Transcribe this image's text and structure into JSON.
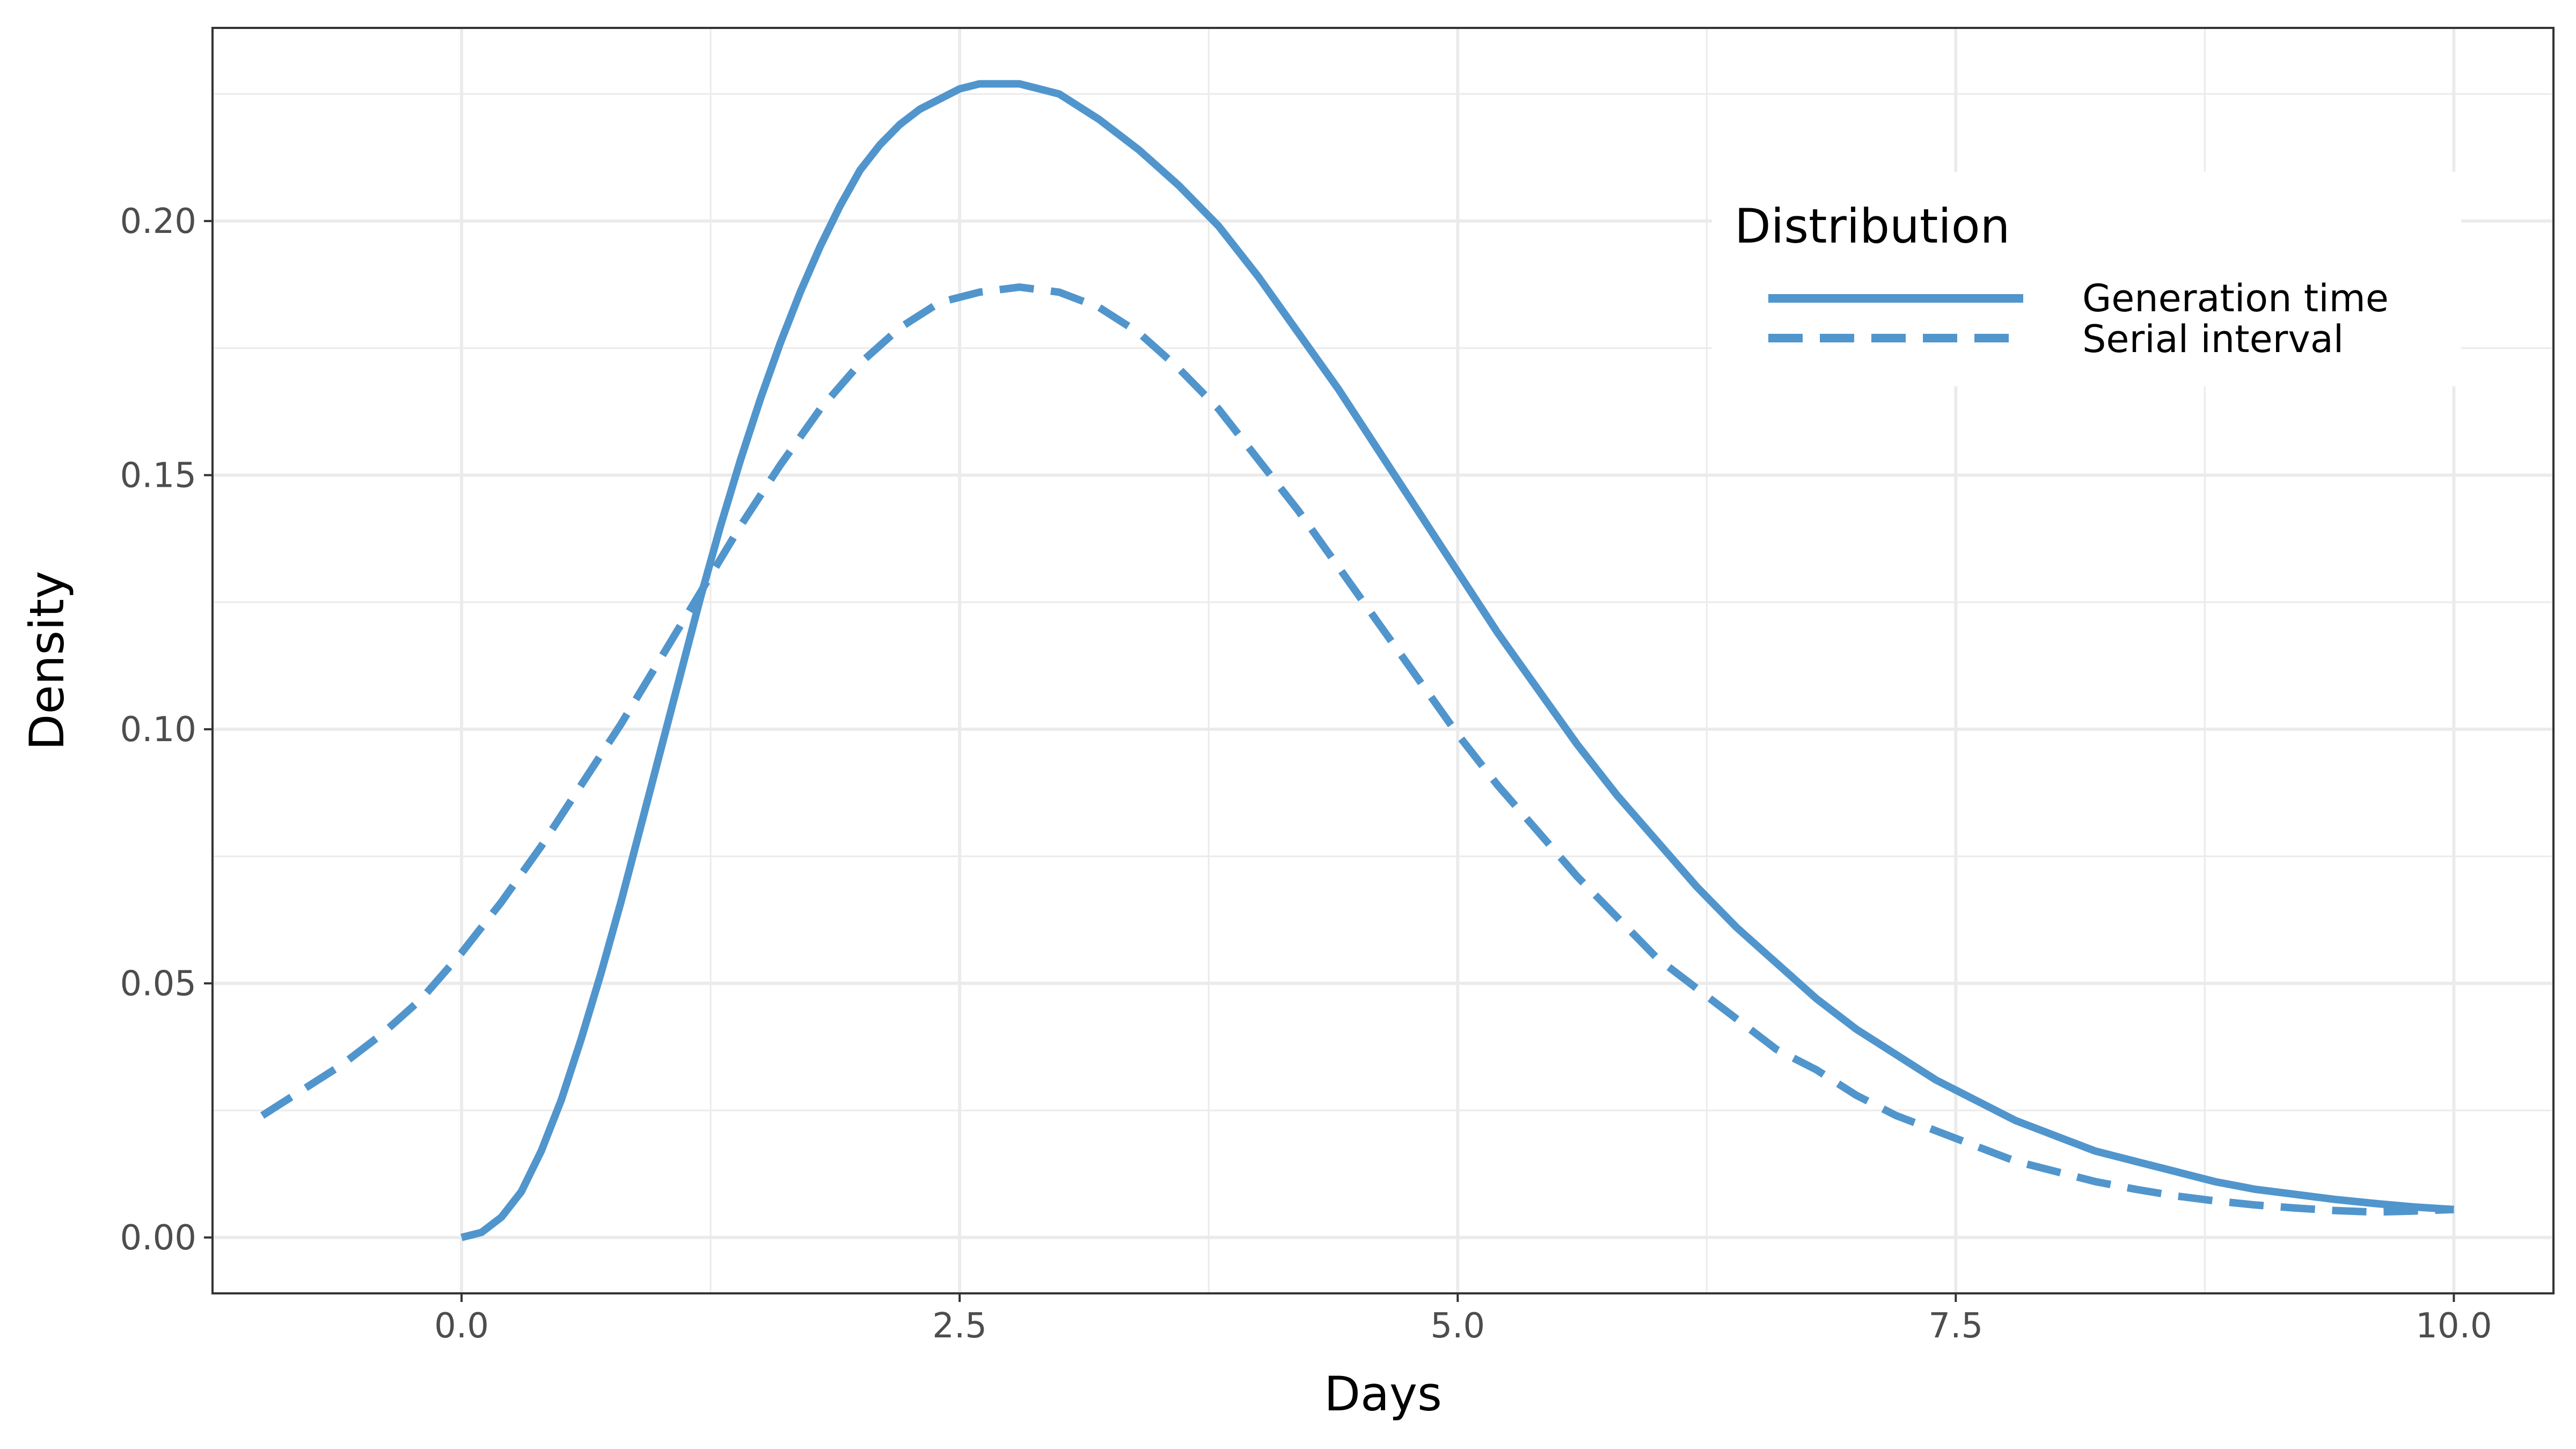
{
  "chart_data": {
    "type": "line",
    "xlabel": "Days",
    "ylabel": "Density",
    "xlim": [
      -1.25,
      10.5
    ],
    "ylim": [
      -0.011,
      0.238
    ],
    "x_ticks": [
      0.0,
      2.5,
      5.0,
      7.5,
      10.0
    ],
    "x_tick_labels": [
      "0.0",
      "2.5",
      "5.0",
      "7.5",
      "10.0"
    ],
    "y_ticks": [
      0.0,
      0.05,
      0.1,
      0.15,
      0.2
    ],
    "y_tick_labels": [
      "0.00",
      "0.05",
      "0.10",
      "0.15",
      "0.20"
    ],
    "grid": true,
    "legend": {
      "title": "Distribution",
      "placement": "top-right",
      "entries": [
        "Generation time",
        "Serial interval"
      ]
    },
    "line_color": "#5195CD",
    "series": [
      {
        "name": "Generation time",
        "style": "solid",
        "x": [
          0,
          0.1,
          0.2,
          0.3,
          0.4,
          0.5,
          0.6,
          0.7,
          0.8,
          0.9,
          1.0,
          1.1,
          1.2,
          1.3,
          1.4,
          1.5,
          1.6,
          1.7,
          1.8,
          1.9,
          2.0,
          2.1,
          2.2,
          2.3,
          2.4,
          2.5,
          2.6,
          2.7,
          2.8,
          2.9,
          3.0,
          3.2,
          3.4,
          3.6,
          3.8,
          4.0,
          4.2,
          4.4,
          4.6,
          4.8,
          5.0,
          5.2,
          5.4,
          5.6,
          5.8,
          6.0,
          6.2,
          6.4,
          6.6,
          6.8,
          7.0,
          7.2,
          7.4,
          7.6,
          7.8,
          8.0,
          8.2,
          8.4,
          8.6,
          8.8,
          9.0,
          9.2,
          9.4,
          9.6,
          9.8,
          10.0
        ],
        "values": [
          0.0,
          0.001,
          0.004,
          0.009,
          0.017,
          0.027,
          0.039,
          0.052,
          0.066,
          0.081,
          0.096,
          0.111,
          0.126,
          0.14,
          0.153,
          0.165,
          0.176,
          0.186,
          0.195,
          0.203,
          0.21,
          0.215,
          0.219,
          0.222,
          0.224,
          0.226,
          0.227,
          0.227,
          0.227,
          0.226,
          0.225,
          0.22,
          0.214,
          0.207,
          0.199,
          0.189,
          0.178,
          0.167,
          0.155,
          0.143,
          0.131,
          0.119,
          0.108,
          0.097,
          0.087,
          0.078,
          0.069,
          0.061,
          0.054,
          0.047,
          0.041,
          0.036,
          0.031,
          0.027,
          0.023,
          0.02,
          0.017,
          0.015,
          0.013,
          0.011,
          0.0095,
          0.0085,
          0.0075,
          0.0067,
          0.006,
          0.0055
        ]
      },
      {
        "name": "Serial interval",
        "style": "dashed",
        "x": [
          -1.0,
          -0.8,
          -0.6,
          -0.4,
          -0.2,
          0.0,
          0.2,
          0.4,
          0.6,
          0.8,
          1.0,
          1.2,
          1.4,
          1.6,
          1.8,
          2.0,
          2.2,
          2.4,
          2.6,
          2.8,
          3.0,
          3.2,
          3.4,
          3.6,
          3.8,
          4.0,
          4.2,
          4.4,
          4.6,
          4.8,
          5.0,
          5.2,
          5.4,
          5.6,
          5.8,
          6.0,
          6.2,
          6.4,
          6.6,
          6.8,
          7.0,
          7.2,
          7.4,
          7.6,
          7.8,
          8.0,
          8.2,
          8.4,
          8.6,
          8.8,
          9.0,
          9.2,
          9.4,
          9.6,
          9.8,
          10.0
        ],
        "values": [
          0.024,
          0.029,
          0.034,
          0.04,
          0.047,
          0.056,
          0.066,
          0.077,
          0.089,
          0.101,
          0.114,
          0.127,
          0.14,
          0.152,
          0.163,
          0.172,
          0.179,
          0.184,
          0.186,
          0.187,
          0.186,
          0.183,
          0.178,
          0.171,
          0.163,
          0.153,
          0.143,
          0.132,
          0.121,
          0.11,
          0.099,
          0.089,
          0.08,
          0.071,
          0.063,
          0.055,
          0.049,
          0.043,
          0.037,
          0.033,
          0.028,
          0.024,
          0.021,
          0.018,
          0.015,
          0.013,
          0.011,
          0.0095,
          0.0082,
          0.0072,
          0.0064,
          0.0058,
          0.0053,
          0.005,
          0.0052,
          0.0055
        ]
      }
    ]
  }
}
